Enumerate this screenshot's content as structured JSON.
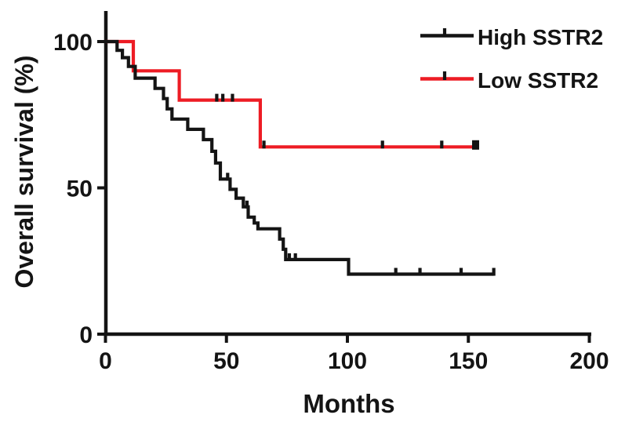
{
  "figure": {
    "background_color": "#ffffff",
    "ink_color": "#141414"
  },
  "chart_data": {
    "type": "line",
    "variant": "kaplan-meier-step",
    "title": "",
    "xlabel": "Months",
    "ylabel": "Overall survival (%)",
    "xlim": [
      0,
      200
    ],
    "ylim": [
      0,
      100
    ],
    "x_ticks": [
      0,
      50,
      100,
      150,
      200
    ],
    "y_ticks": [
      0,
      50,
      100
    ],
    "grid": false,
    "legend_position": "top-right",
    "censor_mark_color": "#141414",
    "series": [
      {
        "name": "High SSTR2",
        "color": "#141414",
        "steps": [
          [
            0,
            100
          ],
          [
            4.8,
            97
          ],
          [
            7,
            94.5
          ],
          [
            9.5,
            91.5
          ],
          [
            12.3,
            87.5
          ],
          [
            20.5,
            84
          ],
          [
            24,
            80.5
          ],
          [
            25.5,
            77
          ],
          [
            27.5,
            73.5
          ],
          [
            34,
            70
          ],
          [
            40.5,
            66.5
          ],
          [
            44,
            62.5
          ],
          [
            45.5,
            58.5
          ],
          [
            47.5,
            53
          ],
          [
            51.5,
            49.5
          ],
          [
            54,
            46.5
          ],
          [
            57,
            43.5
          ],
          [
            59,
            40
          ],
          [
            61.5,
            38
          ],
          [
            63,
            36
          ],
          [
            72,
            32.5
          ],
          [
            73.5,
            29
          ],
          [
            74.5,
            25.5
          ],
          [
            100.5,
            20.5
          ]
        ],
        "end_time": 160.5,
        "end_marker": "tick",
        "censor_marks": [
          [
            50.5,
            53
          ],
          [
            58.5,
            43.5
          ],
          [
            76,
            25.5
          ],
          [
            78.5,
            25.5
          ],
          [
            120,
            20.5
          ],
          [
            130,
            20.5
          ],
          [
            147,
            20.5
          ],
          [
            160.5,
            20.5
          ]
        ]
      },
      {
        "name": "Low SSTR2",
        "color": "#ed1c24",
        "steps": [
          [
            0,
            100
          ],
          [
            11.5,
            90
          ],
          [
            30.5,
            80
          ],
          [
            64,
            64
          ]
        ],
        "end_time": 153,
        "end_marker": "square",
        "censor_marks": [
          [
            46,
            80
          ],
          [
            48.5,
            80
          ],
          [
            52.5,
            80
          ],
          [
            65.5,
            64
          ],
          [
            114.5,
            64
          ],
          [
            139,
            64
          ],
          [
            153,
            64
          ]
        ]
      }
    ]
  }
}
